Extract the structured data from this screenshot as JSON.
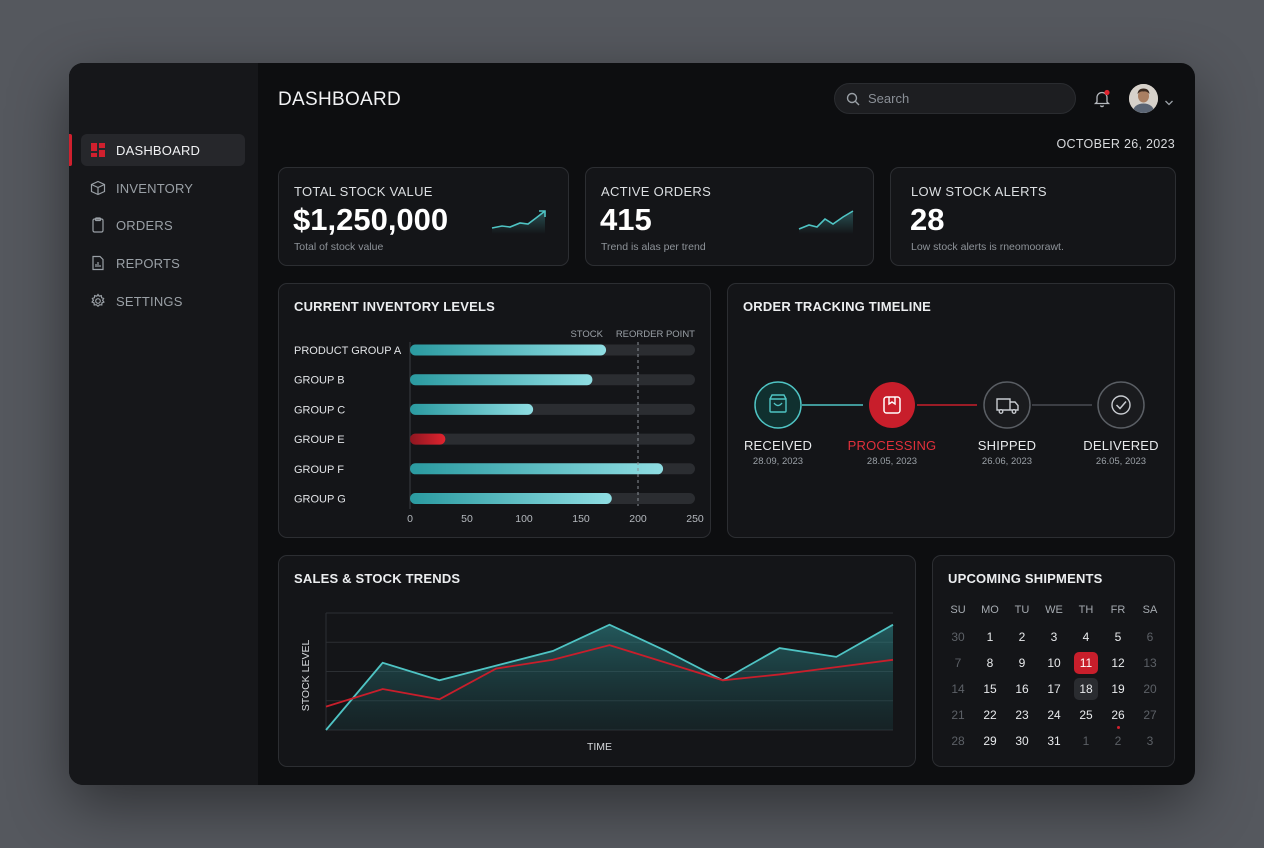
{
  "sidebar": {
    "items": [
      {
        "label": "DASHBOARD",
        "icon": "dashboard-icon",
        "active": true
      },
      {
        "label": "INVENTORY",
        "icon": "box-icon",
        "active": false
      },
      {
        "label": "ORDERS",
        "icon": "clipboard-icon",
        "active": false
      },
      {
        "label": "REPORTS",
        "icon": "report-icon",
        "active": false
      },
      {
        "label": "SETTINGS",
        "icon": "gear-icon",
        "active": false
      }
    ]
  },
  "header": {
    "title": "DASHBOARD",
    "search_placeholder": "Search",
    "date": "OCTOBER 26, 2023"
  },
  "stats": [
    {
      "label": "TOTAL STOCK VALUE",
      "value": "$1,250,000",
      "sub": "Total of stock value"
    },
    {
      "label": "ACTIVE ORDERS",
      "value": "415",
      "sub": "Trend is alas per trend"
    },
    {
      "label": "LOW STOCK ALERTS",
      "value": "28",
      "sub": "Low stock alerts is rneomoorawt."
    }
  ],
  "inventory": {
    "title": "CURRENT INVENTORY LEVELS",
    "legend_stock": "STOCK",
    "legend_reorder": "REORDER POINT"
  },
  "timeline": {
    "title": "ORDER TRACKING TIMELINE",
    "steps": [
      {
        "label": "RECEIVED",
        "date": "28.09, 2023",
        "state": "done"
      },
      {
        "label": "PROCESSING",
        "date": "28.05, 2023",
        "state": "current"
      },
      {
        "label": "SHIPPED",
        "date": "26.06, 2023",
        "state": "pending"
      },
      {
        "label": "DELIVERED",
        "date": "26.05, 2023",
        "state": "pending"
      }
    ]
  },
  "trends": {
    "title": "SALES & STOCK TRENDS"
  },
  "calendar": {
    "title": "UPCOMING SHIPMENTS",
    "weekdays": [
      "SU",
      "MO",
      "TU",
      "WE",
      "TH",
      "FR",
      "SA"
    ],
    "weeks": [
      [
        "30",
        "1",
        "2",
        "3",
        "4",
        "5",
        "6"
      ],
      [
        "7",
        "8",
        "9",
        "10",
        "11",
        "12",
        "13"
      ],
      [
        "14",
        "15",
        "16",
        "17",
        "18",
        "19",
        "20"
      ],
      [
        "21",
        "22",
        "23",
        "24",
        "25",
        "26",
        "27"
      ],
      [
        "28",
        "29",
        "30",
        "31",
        "1",
        "2",
        "3"
      ]
    ],
    "today": "11",
    "highlighted": "18",
    "event_day": "26"
  },
  "colors": {
    "accent_red": "#c81e2b",
    "accent_teal": "#4fc4c4",
    "background": "#0d0e10"
  },
  "chart_data": [
    {
      "type": "bar",
      "orientation": "horizontal",
      "title": "CURRENT INVENTORY LEVELS",
      "categories": [
        "PRODUCT GROUP A",
        "GROUP B",
        "GROUP C",
        "GROUP E",
        "GROUP F",
        "GROUP G"
      ],
      "values": [
        172,
        160,
        108,
        31,
        222,
        177
      ],
      "status": [
        "ok",
        "ok",
        "ok",
        "low",
        "ok",
        "ok"
      ],
      "reorder_point": 200,
      "xlim": [
        0,
        250
      ],
      "xticks": [
        0,
        50,
        100,
        150,
        200,
        250
      ],
      "legend": [
        "STOCK",
        "REORDER POINT"
      ]
    },
    {
      "type": "area",
      "title": "SALES & STOCK TRENDS",
      "xlabel": "TIME",
      "ylabel": "STOCK LEVEL",
      "ylim": [
        0,
        4
      ],
      "grid": true,
      "x": [
        0,
        1,
        2,
        3,
        4,
        5,
        6,
        7,
        8,
        9,
        10
      ],
      "series": [
        {
          "color": "#4fc4c4",
          "fill": true,
          "values": [
            0,
            2.3,
            1.7,
            2.2,
            2.7,
            3.6,
            2.7,
            1.7,
            2.8,
            2.5,
            3.6
          ]
        },
        {
          "color": "#c81e2b",
          "fill": false,
          "values": [
            0.8,
            1.4,
            1.05,
            2.1,
            2.4,
            2.9,
            2.3,
            1.7,
            1.9,
            2.15,
            2.4
          ]
        }
      ]
    }
  ]
}
